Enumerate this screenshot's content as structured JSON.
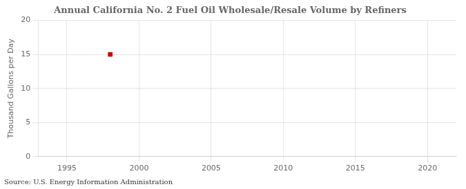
{
  "chart_data": {
    "type": "scatter",
    "title": "Annual California No. 2 Fuel Oil Wholesale/Resale Volume by Refiners",
    "ylabel": "Thousand Gallons per Day",
    "annotations": [
      "Source: U.S. Energy Information Administration"
    ],
    "x": [
      1998
    ],
    "values": [
      15.0
    ],
    "color": "#cc0000",
    "marker": "square",
    "xlim": [
      1993,
      2022
    ],
    "xticks": [
      1995,
      2000,
      2005,
      2010,
      2015,
      2020
    ],
    "ylim": [
      0,
      20
    ],
    "yticks": [
      0,
      5,
      10,
      15,
      20
    ],
    "grid": true
  }
}
